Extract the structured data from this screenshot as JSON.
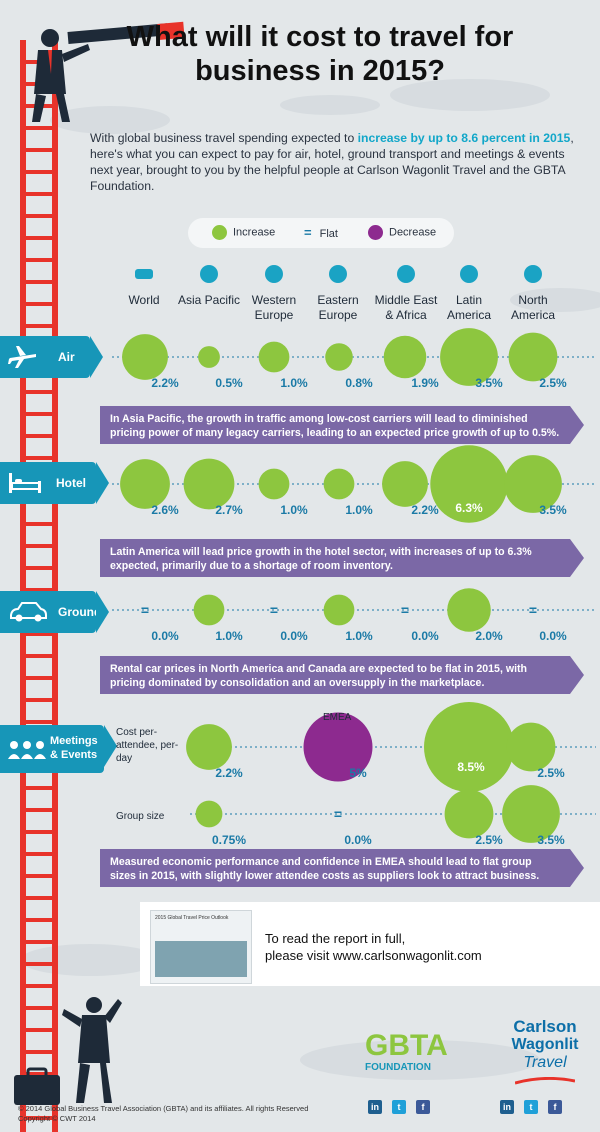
{
  "title": "What will it cost to travel for business in 2015?",
  "intro": {
    "before": "With global business travel spending expected to ",
    "highlight": "increase by up to 8.6 percent in 2015",
    "after": ", here's what you can expect to pay for air, hotel, ground transport and meetings & events next year, brought to you by the helpful people at Carlson Wagonlit Travel and the GBTA Foundation."
  },
  "legend": {
    "increase": "Increase",
    "flat_symbol": "=",
    "flat": "Flat",
    "decrease": "Decrease"
  },
  "colors": {
    "increase": "#8dc63f",
    "decrease": "#8d2a8f",
    "flat": "#1a7aa6",
    "band": "#1796b8",
    "note": "#7b68a6",
    "ladder": "#e8332a"
  },
  "regions": [
    "World",
    "Asia Pacific",
    "Western Europe",
    "Eastern Europe",
    "Middle East & Africa",
    "Latin America",
    "North America"
  ],
  "categories": {
    "air": "Air",
    "hotel": "Hotel",
    "ground": "Ground",
    "meetings": "Meetings & Events"
  },
  "notes": {
    "air": "In Asia Pacific, the growth in traffic among low-cost carriers will lead to diminished pricing power of many legacy carriers, leading to an expected price growth of up to 0.5%.",
    "hotel": "Latin America will lead price growth in the hotel sector, with increases of up to 6.3% expected, primarily due to a shortage of room inventory.",
    "ground": "Rental car prices in North America and Canada are expected to be flat in 2015, with pricing dominated by consolidation and an oversupply in the marketplace.",
    "meetings": "Measured economic performance and confidence in EMEA should lead to flat group sizes in 2015, with slightly lower attendee costs as suppliers look to attract business."
  },
  "meetings_labels": {
    "cost": "Cost per-attendee, per-day",
    "group": "Group size",
    "emea": "EMEA"
  },
  "cta": {
    "line1": "To read the report in full,",
    "line2": "please visit www.carlsonwagonlit.com",
    "thumb_title": "2015 Global Travel Price Outlook"
  },
  "logos": {
    "gbta": "GBTA",
    "gbta_sub": "FOUNDATION",
    "cwt1": "Carlson",
    "cwt2": "Wagonlit",
    "cwt3": "Travel"
  },
  "social": [
    "in",
    "t",
    "f"
  ],
  "footer": {
    "line1": "© 2014 Global Business Travel Association (GBTA) and its affiliates. All rights Reserved",
    "line2": "Copyright © CWT 2014"
  },
  "chart_data": [
    {
      "type": "scatter",
      "title": "Air",
      "categories": [
        "World",
        "Asia Pacific",
        "Western Europe",
        "Eastern Europe",
        "Middle East & Africa",
        "Latin America",
        "North America"
      ],
      "values": [
        2.2,
        0.5,
        1.0,
        0.8,
        1.9,
        3.5,
        2.5
      ],
      "labels": [
        "2.2%",
        "0.5%",
        "1.0%",
        "0.8%",
        "1.9%",
        "3.5%",
        "2.5%"
      ],
      "trend": [
        "increase",
        "increase",
        "increase",
        "increase",
        "increase",
        "increase",
        "increase"
      ]
    },
    {
      "type": "scatter",
      "title": "Hotel",
      "categories": [
        "World",
        "Asia Pacific",
        "Western Europe",
        "Eastern Europe",
        "Middle East & Africa",
        "Latin America",
        "North America"
      ],
      "values": [
        2.6,
        2.7,
        1.0,
        1.0,
        2.2,
        6.3,
        3.5
      ],
      "labels": [
        "2.6%",
        "2.7%",
        "1.0%",
        "1.0%",
        "2.2%",
        "6.3%",
        "3.5%"
      ],
      "trend": [
        "increase",
        "increase",
        "increase",
        "increase",
        "increase",
        "increase",
        "increase"
      ]
    },
    {
      "type": "scatter",
      "title": "Ground",
      "categories": [
        "World",
        "Asia Pacific",
        "Western Europe",
        "Eastern Europe",
        "Middle East & Africa",
        "Latin America",
        "North America"
      ],
      "values": [
        0.0,
        1.0,
        0.0,
        1.0,
        0.0,
        2.0,
        0.0
      ],
      "labels": [
        "0.0%",
        "1.0%",
        "0.0%",
        "1.0%",
        "0.0%",
        "2.0%",
        "0.0%"
      ],
      "trend": [
        "flat",
        "increase",
        "flat",
        "increase",
        "flat",
        "increase",
        "flat"
      ]
    },
    {
      "type": "scatter",
      "title": "Meetings & Events — Cost per-attendee, per-day",
      "categories": [
        "Asia Pacific",
        "EMEA",
        "Latin America",
        "North America"
      ],
      "values": [
        2.2,
        5.0,
        8.5,
        2.5
      ],
      "labels": [
        "2.2%",
        "5%",
        "8.5%",
        "2.5%"
      ],
      "trend": [
        "increase",
        "decrease",
        "increase",
        "increase"
      ]
    },
    {
      "type": "scatter",
      "title": "Meetings & Events — Group size",
      "categories": [
        "Asia Pacific",
        "EMEA",
        "Latin America",
        "North America"
      ],
      "values": [
        0.75,
        0.0,
        2.5,
        3.5
      ],
      "labels": [
        "0.75%",
        "0.0%",
        "2.5%",
        "3.5%"
      ],
      "trend": [
        "increase",
        "flat",
        "increase",
        "increase"
      ]
    }
  ]
}
